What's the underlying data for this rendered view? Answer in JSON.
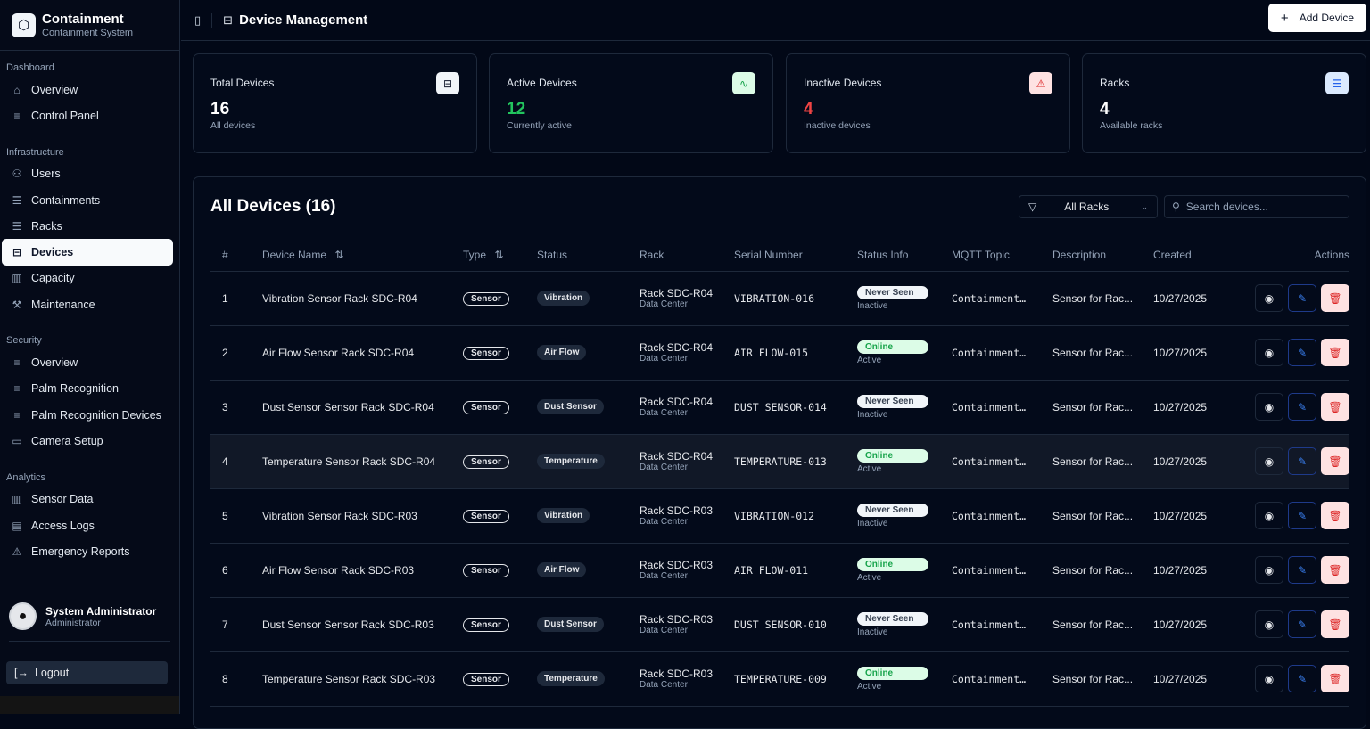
{
  "brand": {
    "title": "Containment",
    "subtitle": "Containment System"
  },
  "sidebar": {
    "groups": [
      {
        "label": "Dashboard",
        "items": [
          {
            "label": "Overview",
            "icon": "home-icon"
          },
          {
            "label": "Control Panel",
            "icon": "menu-icon"
          }
        ]
      },
      {
        "label": "Infrastructure",
        "items": [
          {
            "label": "Users",
            "icon": "users-icon"
          },
          {
            "label": "Containments",
            "icon": "server-icon"
          },
          {
            "label": "Racks",
            "icon": "server-icon"
          },
          {
            "label": "Devices",
            "icon": "hard-drive-icon",
            "active": true
          },
          {
            "label": "Capacity",
            "icon": "bar-chart-icon"
          },
          {
            "label": "Maintenance",
            "icon": "wrench-icon"
          }
        ]
      },
      {
        "label": "Security",
        "items": [
          {
            "label": "Overview",
            "icon": "menu-icon"
          },
          {
            "label": "Palm Recognition",
            "icon": "menu-icon"
          },
          {
            "label": "Palm Recognition Devices",
            "icon": "menu-icon"
          },
          {
            "label": "Camera Setup",
            "icon": "camera-icon"
          }
        ]
      },
      {
        "label": "Analytics",
        "items": [
          {
            "label": "Sensor Data",
            "icon": "bar-chart-icon"
          },
          {
            "label": "Access Logs",
            "icon": "file-icon"
          },
          {
            "label": "Emergency Reports",
            "icon": "alert-icon"
          }
        ]
      }
    ]
  },
  "user": {
    "name": "System Administrator",
    "role": "Administrator",
    "logout": "Logout"
  },
  "header": {
    "title": "Device Management",
    "add_button": "Add Device"
  },
  "stats": [
    {
      "title": "Total Devices",
      "value": "16",
      "sub": "All devices",
      "color": "#ffffff",
      "icon": "hard-drive-icon",
      "icon_bg": "#f1f5f9",
      "icon_color": "#0f172a"
    },
    {
      "title": "Active Devices",
      "value": "12",
      "sub": "Currently active",
      "color": "#22c55e",
      "icon": "activity-icon",
      "icon_bg": "#dcfce7",
      "icon_color": "#16a34a"
    },
    {
      "title": "Inactive Devices",
      "value": "4",
      "sub": "Inactive devices",
      "color": "#ef4444",
      "icon": "alert-triangle-icon",
      "icon_bg": "#fee2e2",
      "icon_color": "#dc2626"
    },
    {
      "title": "Racks",
      "value": "4",
      "sub": "Available racks",
      "color": "#ffffff",
      "icon": "server-icon",
      "icon_bg": "#dbeafe",
      "icon_color": "#2563eb"
    }
  ],
  "devices": {
    "title": "All Devices (16)",
    "filter": "All Racks",
    "search_placeholder": "Search devices...",
    "columns": [
      "#",
      "Device Name",
      "Type",
      "Status",
      "Rack",
      "Serial Number",
      "Status Info",
      "MQTT Topic",
      "Description",
      "Created",
      "Actions"
    ],
    "rows": [
      {
        "n": "1",
        "name": "Vibration Sensor Rack SDC-R04",
        "type": "Sensor",
        "status": "Vibration",
        "rack": "Rack SDC-R04",
        "loc": "Data Center",
        "serial": "VIBRATION-016",
        "info": "Never Seen",
        "state": "Inactive",
        "mqtt": "Containment…",
        "desc": "Sensor for Rac...",
        "created": "10/27/2025"
      },
      {
        "n": "2",
        "name": "Air Flow Sensor Rack SDC-R04",
        "type": "Sensor",
        "status": "Air Flow",
        "rack": "Rack SDC-R04",
        "loc": "Data Center",
        "serial": "AIR FLOW-015",
        "info": "Online",
        "state": "Active",
        "mqtt": "Containment…",
        "desc": "Sensor for Rac...",
        "created": "10/27/2025"
      },
      {
        "n": "3",
        "name": "Dust Sensor Sensor Rack SDC-R04",
        "type": "Sensor",
        "status": "Dust Sensor",
        "rack": "Rack SDC-R04",
        "loc": "Data Center",
        "serial": "DUST SENSOR-014",
        "info": "Never Seen",
        "state": "Inactive",
        "mqtt": "Containment…",
        "desc": "Sensor for Rac...",
        "created": "10/27/2025"
      },
      {
        "n": "4",
        "name": "Temperature Sensor Rack SDC-R04",
        "type": "Sensor",
        "status": "Temperature",
        "rack": "Rack SDC-R04",
        "loc": "Data Center",
        "serial": "TEMPERATURE-013",
        "info": "Online",
        "state": "Active",
        "mqtt": "Containment…",
        "desc": "Sensor for Rac...",
        "created": "10/27/2025"
      },
      {
        "n": "5",
        "name": "Vibration Sensor Rack SDC-R03",
        "type": "Sensor",
        "status": "Vibration",
        "rack": "Rack SDC-R03",
        "loc": "Data Center",
        "serial": "VIBRATION-012",
        "info": "Never Seen",
        "state": "Inactive",
        "mqtt": "Containment…",
        "desc": "Sensor for Rac...",
        "created": "10/27/2025"
      },
      {
        "n": "6",
        "name": "Air Flow Sensor Rack SDC-R03",
        "type": "Sensor",
        "status": "Air Flow",
        "rack": "Rack SDC-R03",
        "loc": "Data Center",
        "serial": "AIR FLOW-011",
        "info": "Online",
        "state": "Active",
        "mqtt": "Containment…",
        "desc": "Sensor for Rac...",
        "created": "10/27/2025"
      },
      {
        "n": "7",
        "name": "Dust Sensor Sensor Rack SDC-R03",
        "type": "Sensor",
        "status": "Dust Sensor",
        "rack": "Rack SDC-R03",
        "loc": "Data Center",
        "serial": "DUST SENSOR-010",
        "info": "Never Seen",
        "state": "Inactive",
        "mqtt": "Containment…",
        "desc": "Sensor for Rac...",
        "created": "10/27/2025"
      },
      {
        "n": "8",
        "name": "Temperature Sensor Rack SDC-R03",
        "type": "Sensor",
        "status": "Temperature",
        "rack": "Rack SDC-R03",
        "loc": "Data Center",
        "serial": "TEMPERATURE-009",
        "info": "Online",
        "state": "Active",
        "mqtt": "Containment…",
        "desc": "Sensor for Rac...",
        "created": "10/27/2025"
      }
    ]
  }
}
